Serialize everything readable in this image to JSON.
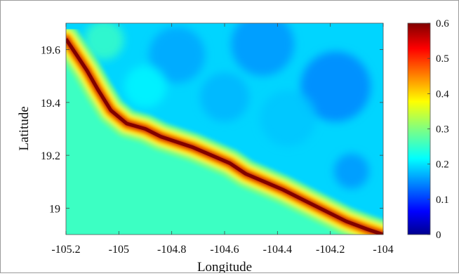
{
  "chart_data": {
    "type": "heatmap",
    "xlabel": "Longitude",
    "ylabel": "Latitude",
    "xlim": [
      -105.2,
      -104.0
    ],
    "ylim": [
      18.9,
      19.7
    ],
    "xticks": [
      -105.2,
      -105.0,
      -104.8,
      -104.6,
      -104.4,
      -104.2,
      -104.0
    ],
    "xtick_labels": [
      "-105.2",
      "-105",
      "-104.8",
      "-104.6",
      "-104.4",
      "-104.2",
      "-104"
    ],
    "yticks": [
      19.0,
      19.2,
      19.4,
      19.6
    ],
    "ytick_labels": [
      "19",
      "19.2",
      "19.4",
      "19.6"
    ],
    "colorbar": {
      "colormap": "jet",
      "range": [
        0,
        0.6
      ],
      "ticks": [
        0,
        0.1,
        0.2,
        0.3,
        0.4,
        0.5,
        0.6
      ],
      "tick_labels": [
        "0",
        "0.1",
        "0.2",
        "0.3",
        "0.4",
        "0.5",
        "0.6"
      ]
    },
    "field_description_values": {
      "coastline": [
        [
          -105.2,
          19.64
        ],
        [
          -105.16,
          19.58
        ],
        [
          -105.12,
          19.52
        ],
        [
          -105.08,
          19.45
        ],
        [
          -105.03,
          19.37
        ],
        [
          -104.97,
          19.32
        ],
        [
          -104.9,
          19.3
        ],
        [
          -104.84,
          19.27
        ],
        [
          -104.78,
          19.25
        ],
        [
          -104.72,
          19.23
        ],
        [
          -104.65,
          19.2
        ],
        [
          -104.58,
          19.17
        ],
        [
          -104.52,
          19.13
        ],
        [
          -104.45,
          19.1
        ],
        [
          -104.38,
          19.07
        ],
        [
          -104.3,
          19.03
        ],
        [
          -104.22,
          18.99
        ],
        [
          -104.14,
          18.95
        ],
        [
          -104.06,
          18.92
        ],
        [
          -104.0,
          18.9
        ]
      ],
      "coast_max_value": 0.6,
      "ocean_value": 0.26,
      "land_value": 0.2
    }
  }
}
